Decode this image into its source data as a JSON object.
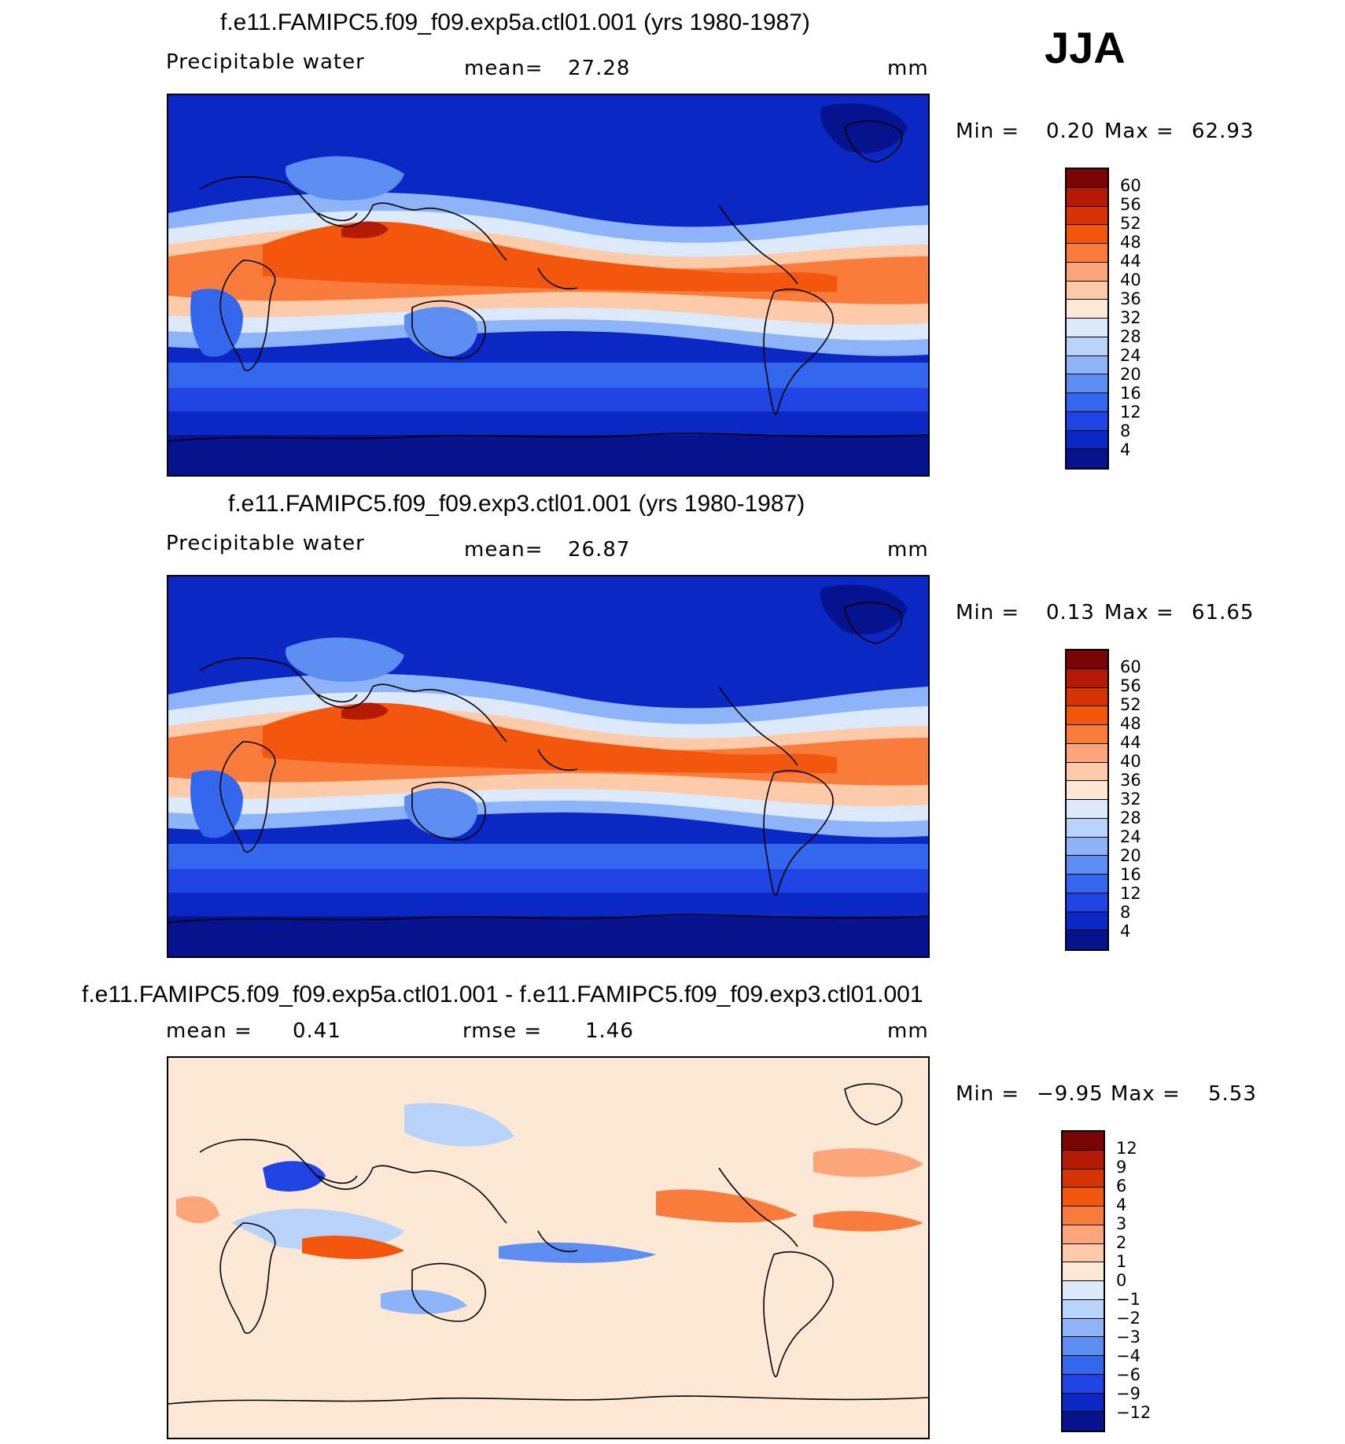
{
  "season": "JJA",
  "panels": [
    {
      "title": "f.e11.FAMIPC5.f09_f09.exp5a.ctl01.001 (yrs 1980-1987)",
      "left_label": "Precipitable water",
      "mid_label": "mean=",
      "mid_value": "27.28",
      "units": "mm",
      "min_label": "Min =",
      "min_value": "0.20",
      "max_label": "Max =",
      "max_value": "62.93",
      "colorbar": {
        "levels": [
          "60",
          "56",
          "52",
          "48",
          "44",
          "40",
          "36",
          "32",
          "28",
          "24",
          "20",
          "16",
          "12",
          "8",
          "4"
        ],
        "colors": [
          "#7a0403",
          "#b51a05",
          "#d63406",
          "#f2570d",
          "#fa7c3c",
          "#fca47a",
          "#fdcaaa",
          "#fde7d5",
          "#dbe9fb",
          "#b8d3fb",
          "#8db4f8",
          "#5c8ef2",
          "#3367ee",
          "#1f44e3",
          "#0b28c4",
          "#05148e"
        ]
      },
      "map_scheme": "precip"
    },
    {
      "title": "f.e11.FAMIPC5.f09_f09.exp3.ctl01.001 (yrs 1980-1987)",
      "left_label": "Precipitable water",
      "mid_label": "mean=",
      "mid_value": "26.87",
      "units": "mm",
      "min_label": "Min =",
      "min_value": "0.13",
      "max_label": "Max =",
      "max_value": "61.65",
      "colorbar": {
        "levels": [
          "60",
          "56",
          "52",
          "48",
          "44",
          "40",
          "36",
          "32",
          "28",
          "24",
          "20",
          "16",
          "12",
          "8",
          "4"
        ],
        "colors": [
          "#7a0403",
          "#b51a05",
          "#d63406",
          "#f2570d",
          "#fa7c3c",
          "#fca47a",
          "#fdcaaa",
          "#fde7d5",
          "#dbe9fb",
          "#b8d3fb",
          "#8db4f8",
          "#5c8ef2",
          "#3367ee",
          "#1f44e3",
          "#0b28c4",
          "#05148e"
        ]
      },
      "map_scheme": "precip"
    },
    {
      "title": "f.e11.FAMIPC5.f09_f09.exp5a.ctl01.001 - f.e11.FAMIPC5.f09_f09.exp3.ctl01.001",
      "left_label": "mean =",
      "left_value": "0.41",
      "mid_label": "rmse =",
      "mid_value": "1.46",
      "units": "mm",
      "min_label": "Min =",
      "min_value": "−9.95",
      "max_label": "Max =",
      "max_value": "5.53",
      "colorbar": {
        "levels": [
          "12",
          "9",
          "6",
          "4",
          "3",
          "2",
          "1",
          "0",
          "−1",
          "−2",
          "−3",
          "−4",
          "−6",
          "−9",
          "−12"
        ],
        "colors": [
          "#7a0403",
          "#b51a05",
          "#d63406",
          "#f2570d",
          "#fa7c3c",
          "#fca47a",
          "#fdcaaa",
          "#fde7d5",
          "#dbe9fb",
          "#b8d3fb",
          "#8db4f8",
          "#5c8ef2",
          "#3367ee",
          "#1f44e3",
          "#0b28c4",
          "#05148e"
        ]
      },
      "map_scheme": "diff"
    }
  ]
}
